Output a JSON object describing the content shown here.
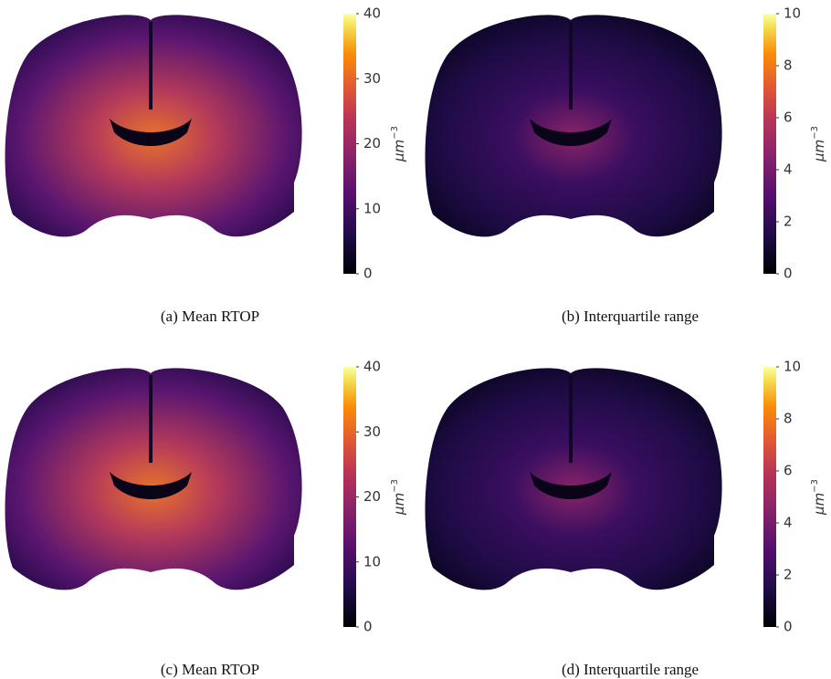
{
  "panels": [
    {
      "caption": "(a) Mean RTOP",
      "colorbar": {
        "label": "μm",
        "label_exponent": "−3",
        "lim": [
          0,
          40
        ],
        "ticks": [
          0,
          10,
          20,
          30,
          40
        ]
      }
    },
    {
      "caption": "(b) Interquartile range",
      "colorbar": {
        "label": "μm",
        "label_exponent": "−3",
        "lim": [
          0,
          10
        ],
        "ticks": [
          0,
          2,
          4,
          6,
          8,
          10
        ]
      }
    },
    {
      "caption": "(c) Mean RTOP",
      "colorbar": {
        "label": "μm",
        "label_exponent": "−3",
        "lim": [
          0,
          40
        ],
        "ticks": [
          0,
          10,
          20,
          30,
          40
        ]
      }
    },
    {
      "caption": "(d) Interquartile range",
      "colorbar": {
        "label": "μm",
        "label_exponent": "−3",
        "lim": [
          0,
          10
        ],
        "ticks": [
          0,
          2,
          4,
          6,
          8,
          10
        ]
      }
    }
  ]
}
